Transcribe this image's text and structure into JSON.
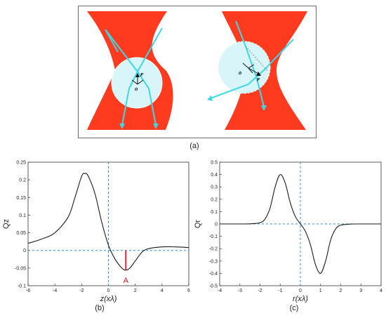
{
  "captions": {
    "a": "(a)",
    "b": "(b)",
    "c": "(c)"
  },
  "diagram_a": {
    "colors": {
      "beam": "#ff3b1f",
      "ray": "#3fd6e6",
      "sphere": "#d8f6fa",
      "arrow": "#111111"
    },
    "left_labels": {
      "force": "F",
      "origin": "o"
    },
    "right_labels": {
      "force": "F",
      "origin": "o"
    }
  },
  "chart_data": [
    {
      "type": "line",
      "title": "",
      "xlabel": "z(xλ)",
      "ylabel": "Qz",
      "xlim": [
        -6,
        6
      ],
      "ylim": [
        -0.1,
        0.25
      ],
      "x_ticks": [
        -6,
        -4,
        -2,
        0,
        2,
        4,
        6
      ],
      "y_ticks": [
        -0.1,
        -0.05,
        0,
        0.05,
        0.1,
        0.15,
        0.2,
        0.25
      ],
      "x_tick_labels": [
        "-6",
        "-4",
        "-2",
        "0",
        "2",
        "4",
        "6"
      ],
      "y_tick_labels": [
        "-0.1",
        "-0.05",
        "0",
        "0.05",
        "0.1",
        "0.15",
        "0.2",
        "0.25"
      ],
      "series": [
        {
          "x": [
            -6,
            -5,
            -4,
            -3,
            -2.5,
            -2,
            -1.75,
            -1.5,
            -1,
            -0.5,
            0,
            0.5,
            1,
            1.3,
            1.6,
            2,
            2.5,
            3,
            4,
            5,
            6
          ],
          "y": [
            0.02,
            0.032,
            0.05,
            0.095,
            0.15,
            0.21,
            0.218,
            0.21,
            0.16,
            0.08,
            0.015,
            -0.025,
            -0.05,
            -0.056,
            -0.05,
            -0.03,
            -0.005,
            0.005,
            0.01,
            0.01,
            0.008
          ]
        }
      ],
      "reference_lines": {
        "x": 0,
        "y": 0
      },
      "annotation": {
        "label": "A",
        "x": 1.3,
        "y_from": 0,
        "y_to": -0.056,
        "color": "#e0141e"
      },
      "line_color": "#1a1a1a",
      "ref_color": "#2f8fd8",
      "grid": false
    },
    {
      "type": "line",
      "title": "",
      "xlabel": "r(xλ)",
      "ylabel": "Qr",
      "xlim": [
        -4,
        4
      ],
      "ylim": [
        -0.5,
        0.5
      ],
      "x_ticks": [
        -4,
        -3,
        -2,
        -1,
        0,
        1,
        2,
        3,
        4
      ],
      "y_ticks": [
        -0.5,
        -0.4,
        -0.3,
        -0.2,
        -0.1,
        0,
        0.1,
        0.2,
        0.3,
        0.4,
        0.5
      ],
      "x_tick_labels": [
        "-4",
        "-3",
        "-2",
        "-1",
        "0",
        "1",
        "2",
        "3",
        "4"
      ],
      "y_tick_labels": [
        "-0.5",
        "-0.4",
        "-0.3",
        "-0.2",
        "-0.1",
        "0",
        "0.1",
        "0.2",
        "0.3",
        "0.4",
        "0.5"
      ],
      "series": [
        {
          "x": [
            -4,
            -3,
            -2.5,
            -2,
            -1.75,
            -1.5,
            -1.25,
            -1,
            -0.75,
            -0.5,
            -0.25,
            0,
            0.25,
            0.5,
            0.75,
            1,
            1.25,
            1.5,
            1.75,
            2,
            2.5,
            3,
            4
          ],
          "y": [
            0,
            0,
            0.001,
            0.01,
            0.04,
            0.13,
            0.3,
            0.4,
            0.33,
            0.17,
            0.06,
            0,
            -0.06,
            -0.17,
            -0.33,
            -0.4,
            -0.3,
            -0.13,
            -0.04,
            -0.01,
            -0.001,
            0,
            0
          ]
        }
      ],
      "reference_lines": {
        "x": 0,
        "y": 0
      },
      "line_color": "#1a1a1a",
      "ref_color": "#2f8fd8",
      "grid": false
    }
  ]
}
